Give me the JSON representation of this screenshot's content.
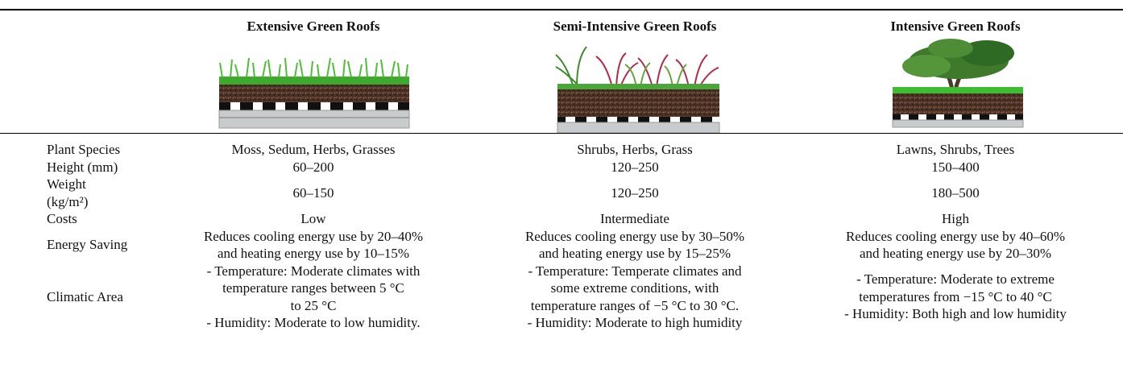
{
  "table": {
    "columns": [
      "Extensive Green Roofs",
      "Semi-Intensive Green Roofs",
      "Intensive Green Roofs"
    ],
    "rows": [
      {
        "label": [
          "Plant Species"
        ],
        "cells": [
          [
            "Moss, Sedum, Herbs, Grasses"
          ],
          [
            "Shrubs, Herbs, Grass"
          ],
          [
            "Lawns, Shrubs, Trees"
          ]
        ]
      },
      {
        "label": [
          "Height (mm)"
        ],
        "cells": [
          [
            "60–200"
          ],
          [
            "120–250"
          ],
          [
            "150–400"
          ]
        ]
      },
      {
        "label": [
          "Weight",
          "(kg/m²)"
        ],
        "cells": [
          [
            "60–150"
          ],
          [
            "120–250"
          ],
          [
            "180–500"
          ]
        ]
      },
      {
        "label": [
          "Costs"
        ],
        "cells": [
          [
            "Low"
          ],
          [
            "Intermediate"
          ],
          [
            "High"
          ]
        ]
      },
      {
        "label": [
          "Energy Saving"
        ],
        "cells": [
          [
            "Reduces cooling energy use by 20–40%",
            "and heating energy use by 10–15%"
          ],
          [
            "Reduces cooling energy use by 30–50%",
            "and heating energy use by 15–25%"
          ],
          [
            "Reduces cooling energy use by 40–60%",
            "and heating energy use by 20–30%"
          ]
        ]
      },
      {
        "label": [
          "Climatic Area"
        ],
        "cells": [
          [
            "- Temperature: Moderate climates with",
            "temperature ranges between 5 °C",
            "to 25 °C",
            "- Humidity: Moderate to low humidity."
          ],
          [
            "- Temperature: Temperate climates and",
            "some extreme conditions, with",
            "temperature ranges of −5 °C to 30 °C.",
            "- Humidity: Moderate to high humidity"
          ],
          [
            "- Temperature: Moderate to extreme",
            "temperatures from −15 °C to 40 °C",
            "- Humidity: Both high and low humidity"
          ]
        ]
      }
    ]
  }
}
